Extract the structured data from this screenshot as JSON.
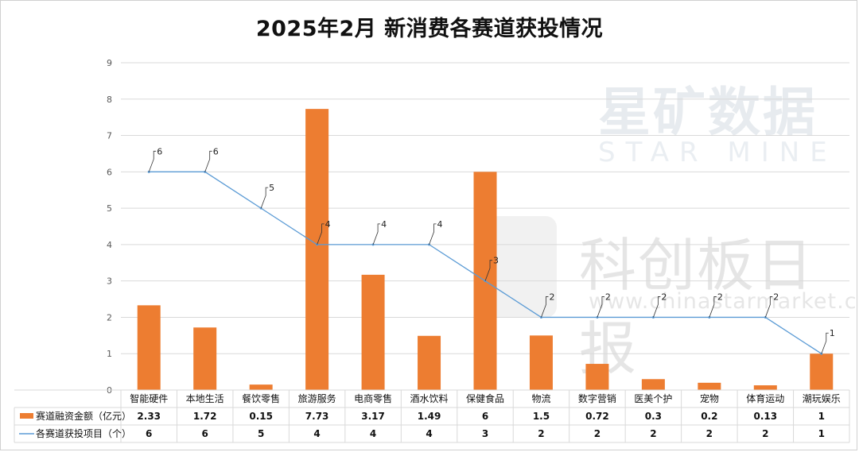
{
  "title": "2025年2月 新消费各赛道获投情况",
  "watermarks": {
    "brand_cn": "星矿数据",
    "brand_en": "STAR MINE",
    "publisher_cn": "科创板日报",
    "url": "www.chinastarmarket.cn"
  },
  "colors": {
    "bar": "#ed7d31",
    "line": "#5b9bd5",
    "grid": "#d9d9d9"
  },
  "chart_data": {
    "type": "bar",
    "title": "2025年2月 新消费各赛道获投情况",
    "categories": [
      "智能硬件",
      "本地生活",
      "餐饮零售",
      "旅游服务",
      "电商零售",
      "酒水饮料",
      "保健食品",
      "物流",
      "数字营销",
      "医美个护",
      "宠物",
      "体育运动",
      "潮玩娱乐"
    ],
    "series": [
      {
        "name": "赛道融资金额（亿元）",
        "type": "bar",
        "values": [
          2.33,
          1.72,
          0.15,
          7.73,
          3.17,
          1.49,
          6,
          1.5,
          0.72,
          0.3,
          0.2,
          0.13,
          1
        ],
        "labels": [
          "2.33",
          "1.72",
          "0.15",
          "7.73",
          "3.17",
          "1.49",
          "6",
          "1.5",
          "0.72",
          "0.3",
          "0.2",
          "0.13",
          "1"
        ]
      },
      {
        "name": "各赛道获投项目（个）",
        "type": "line",
        "values": [
          6,
          6,
          5,
          4,
          4,
          4,
          3,
          2,
          2,
          2,
          2,
          2,
          1
        ],
        "labels": [
          "6",
          "6",
          "5",
          "4",
          "4",
          "4",
          "3",
          "2",
          "2",
          "2",
          "2",
          "2",
          "1"
        ]
      }
    ],
    "ylim": [
      0,
      9
    ],
    "yticks": [
      "0",
      "1",
      "2",
      "3",
      "4",
      "5",
      "6",
      "7",
      "8",
      "9"
    ],
    "grid": true,
    "legend": "data-table-bottom"
  }
}
